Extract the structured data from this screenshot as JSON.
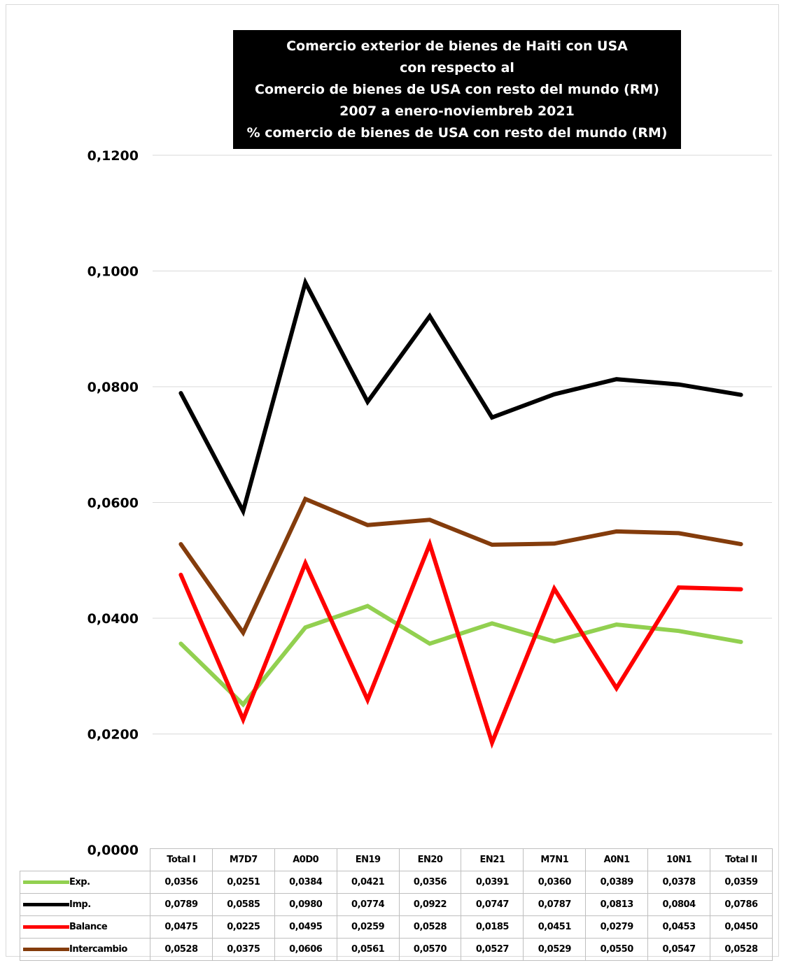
{
  "chart_data": {
    "type": "line",
    "title_lines": [
      "Comercio exterior de bienes de Haiti con USA",
      "con respecto al",
      "Comercio de bienes de USA con resto del mundo (RM)",
      "2007 a enero-noviembreb 2021",
      "% comercio de bienes de USA con resto del mundo (RM)"
    ],
    "categories": [
      "Total I",
      "M7D7",
      "A0D0",
      "EN19",
      "EN20",
      "EN21",
      "M7N1",
      "A0N1",
      "10N1",
      "Total II"
    ],
    "ylim": [
      0,
      0.12
    ],
    "yticks": [
      {
        "value": 0.0,
        "label": "0,0000"
      },
      {
        "value": 0.02,
        "label": "0,0200"
      },
      {
        "value": 0.04,
        "label": "0,0400"
      },
      {
        "value": 0.06,
        "label": "0,0600"
      },
      {
        "value": 0.08,
        "label": "0,0800"
      },
      {
        "value": 0.1,
        "label": "0,1000"
      },
      {
        "value": 0.12,
        "label": "0,1200"
      }
    ],
    "grid": true,
    "legend": "data-table",
    "series": [
      {
        "name": "Exp.",
        "color": "#92d050",
        "values": [
          0.0356,
          0.0251,
          0.0384,
          0.0421,
          0.0356,
          0.0391,
          0.036,
          0.0389,
          0.0378,
          0.0359
        ],
        "labels": [
          "0,0356",
          "0,0251",
          "0,0384",
          "0,0421",
          "0,0356",
          "0,0391",
          "0,0360",
          "0,0389",
          "0,0378",
          "0,0359"
        ]
      },
      {
        "name": "Imp.",
        "color": "#000000",
        "values": [
          0.0789,
          0.0585,
          0.098,
          0.0774,
          0.0922,
          0.0747,
          0.0787,
          0.0813,
          0.0804,
          0.0786
        ],
        "labels": [
          "0,0789",
          "0,0585",
          "0,0980",
          "0,0774",
          "0,0922",
          "0,0747",
          "0,0787",
          "0,0813",
          "0,0804",
          "0,0786"
        ]
      },
      {
        "name": "Balance",
        "color": "#ff0000",
        "values": [
          0.0475,
          0.0225,
          0.0495,
          0.0259,
          0.0528,
          0.0185,
          0.0451,
          0.0279,
          0.0453,
          0.045
        ],
        "labels": [
          "0,0475",
          "0,0225",
          "0,0495",
          "0,0259",
          "0,0528",
          "0,0185",
          "0,0451",
          "0,0279",
          "0,0453",
          "0,0450"
        ]
      },
      {
        "name": "Intercambio",
        "color": "#843c0c",
        "values": [
          0.0528,
          0.0375,
          0.0606,
          0.0561,
          0.057,
          0.0527,
          0.0529,
          0.055,
          0.0547,
          0.0528
        ],
        "labels": [
          "0,0528",
          "0,0375",
          "0,0606",
          "0,0561",
          "0,0570",
          "0,0527",
          "0,0529",
          "0,0550",
          "0,0547",
          "0,0528"
        ]
      }
    ]
  }
}
